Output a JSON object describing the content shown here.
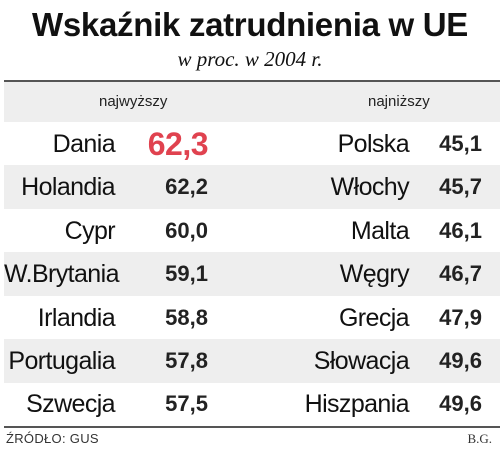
{
  "chart_data": {
    "type": "table",
    "title": "Wskaźnik zatrudnienia w UE",
    "subtitle": "w proc. w 2004 r.",
    "columns": [
      {
        "header": "najwyższy",
        "rows": [
          {
            "country": "Dania",
            "value": "62,3"
          },
          {
            "country": "Holandia",
            "value": "62,2"
          },
          {
            "country": "Cypr",
            "value": "60,0"
          },
          {
            "country": "W.Brytania",
            "value": "59,1"
          },
          {
            "country": "Irlandia",
            "value": "58,8"
          },
          {
            "country": "Portugalia",
            "value": "57,8"
          },
          {
            "country": "Szwecja",
            "value": "57,5"
          }
        ]
      },
      {
        "header": "najniższy",
        "rows": [
          {
            "country": "Polska",
            "value": "45,1"
          },
          {
            "country": "Włochy",
            "value": "45,7"
          },
          {
            "country": "Malta",
            "value": "46,1"
          },
          {
            "country": "Węgry",
            "value": "46,7"
          },
          {
            "country": "Grecja",
            "value": "47,9"
          },
          {
            "country": "Słowacja",
            "value": "49,6"
          },
          {
            "country": "Hiszpania",
            "value": "49,6"
          }
        ]
      }
    ],
    "highlight_color": "#e0424f",
    "shade_color": "#eeeeee"
  },
  "footer": {
    "source": "ŹRÓDŁO: GUS",
    "author": "B.G."
  }
}
